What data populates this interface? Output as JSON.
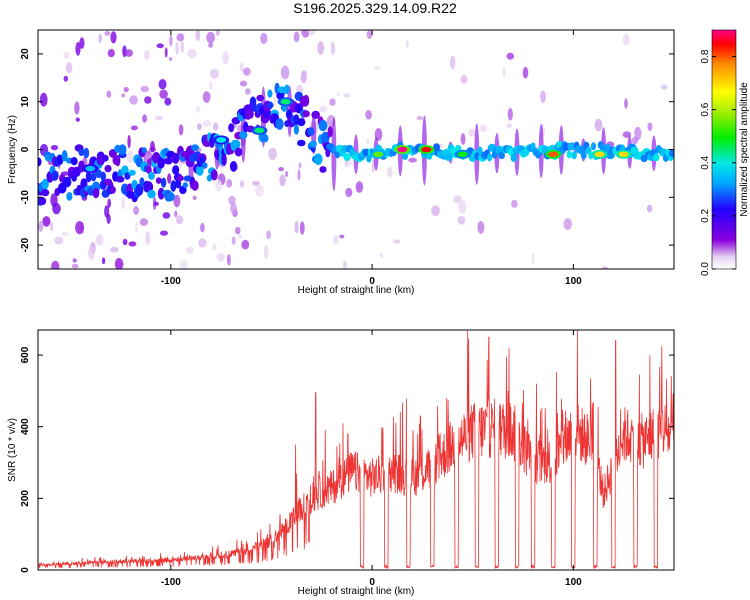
{
  "title": "S196.2025.329.14.09.R22",
  "chart_data": [
    {
      "type": "heatmap",
      "xlabel": "Height of straight line (km)",
      "ylabel": "Frequency (Hz)",
      "xlim": [
        -166,
        150
      ],
      "ylim": [
        -25,
        25
      ],
      "xticks": [
        -100,
        0,
        100
      ],
      "xtick_labels": [
        "-100",
        "0",
        "100"
      ],
      "yticks": [
        -20,
        -10,
        0,
        10,
        20
      ],
      "ytick_labels": [
        "-20",
        "-10",
        "0",
        "10",
        "20"
      ],
      "colorbar": {
        "label": "Normalized spectral amplitude",
        "range": [
          0.0,
          0.9
        ],
        "ticks": [
          0.0,
          0.2,
          0.4,
          0.6,
          0.8
        ],
        "tick_labels": [
          "0.0",
          "0.2",
          "0.4",
          "0.6",
          "0.8"
        ]
      },
      "ridge": [
        {
          "x": -160,
          "f": -6
        },
        {
          "x": -140,
          "f": -4
        },
        {
          "x": -120,
          "f": -5
        },
        {
          "x": -100,
          "f": -5
        },
        {
          "x": -85,
          "f": -3
        },
        {
          "x": -75,
          "f": -1
        },
        {
          "x": -68,
          "f": 1
        },
        {
          "x": -60,
          "f": 5
        },
        {
          "x": -50,
          "f": 8
        },
        {
          "x": -40,
          "f": 8
        },
        {
          "x": -32,
          "f": 5
        },
        {
          "x": -22,
          "f": -1
        },
        {
          "x": -12,
          "f": -1
        },
        {
          "x": 0,
          "f": -1
        },
        {
          "x": 20,
          "f": 0
        },
        {
          "x": 50,
          "f": -1
        },
        {
          "x": 100,
          "f": 0
        },
        {
          "x": 150,
          "f": -1
        }
      ],
      "peaks": [
        {
          "x": 15,
          "f": 0,
          "amp": 0.9
        },
        {
          "x": 27,
          "f": 0,
          "amp": 0.85
        },
        {
          "x": 45,
          "f": -1,
          "amp": 0.5
        },
        {
          "x": 90,
          "f": -1,
          "amp": 0.8
        },
        {
          "x": 113,
          "f": -1,
          "amp": 0.7
        },
        {
          "x": 125,
          "f": -1,
          "amp": 0.7
        },
        {
          "x": -43,
          "f": 10,
          "amp": 0.45
        },
        {
          "x": -56,
          "f": 4,
          "amp": 0.45
        },
        {
          "x": -75,
          "f": 2,
          "amp": 0.4
        },
        {
          "x": -140,
          "f": -4,
          "amp": 0.35
        },
        {
          "x": 3,
          "f": -1,
          "amp": 0.55
        }
      ]
    },
    {
      "type": "line",
      "xlabel": "Height of straight line (km)",
      "ylabel": "SNR (10 * v/v)",
      "xlim": [
        -166,
        150
      ],
      "ylim": [
        0,
        670
      ],
      "xticks": [
        -100,
        0,
        100
      ],
      "xtick_labels": [
        "-100",
        "0",
        "100"
      ],
      "yticks": [
        0,
        200,
        400,
        600
      ],
      "ytick_labels": [
        "0",
        "200",
        "400",
        "600"
      ],
      "color": "#ee3333",
      "envelope": [
        {
          "x": -166,
          "y": 15
        },
        {
          "x": -130,
          "y": 25
        },
        {
          "x": -100,
          "y": 30
        },
        {
          "x": -75,
          "y": 45
        },
        {
          "x": -60,
          "y": 60
        },
        {
          "x": -50,
          "y": 90
        },
        {
          "x": -40,
          "y": 150
        },
        {
          "x": -30,
          "y": 220
        },
        {
          "x": -20,
          "y": 250
        },
        {
          "x": -10,
          "y": 300
        },
        {
          "x": 0,
          "y": 280
        },
        {
          "x": 10,
          "y": 300
        },
        {
          "x": 20,
          "y": 280
        },
        {
          "x": 30,
          "y": 310
        },
        {
          "x": 40,
          "y": 380
        },
        {
          "x": 50,
          "y": 420
        },
        {
          "x": 60,
          "y": 430
        },
        {
          "x": 70,
          "y": 420
        },
        {
          "x": 80,
          "y": 330
        },
        {
          "x": 90,
          "y": 330
        },
        {
          "x": 100,
          "y": 430
        },
        {
          "x": 110,
          "y": 380
        },
        {
          "x": 115,
          "y": 230
        },
        {
          "x": 125,
          "y": 410
        },
        {
          "x": 135,
          "y": 390
        },
        {
          "x": 145,
          "y": 430
        },
        {
          "x": 150,
          "y": 400
        }
      ],
      "dropouts": [
        -5,
        7,
        18,
        30,
        42,
        52,
        62,
        72,
        80,
        90,
        100,
        111,
        120,
        131,
        141
      ],
      "spikes": [
        {
          "x": -38,
          "y": 350
        },
        {
          "x": -28,
          "y": 495
        },
        {
          "x": -12,
          "y": 380
        },
        {
          "x": 5,
          "y": 370
        },
        {
          "x": 24,
          "y": 430
        },
        {
          "x": 37,
          "y": 480
        },
        {
          "x": 58,
          "y": 650
        },
        {
          "x": 68,
          "y": 620
        },
        {
          "x": 102,
          "y": 670
        },
        {
          "x": 121,
          "y": 640
        },
        {
          "x": 144,
          "y": 625
        },
        {
          "x": 138,
          "y": 600
        }
      ]
    }
  ]
}
